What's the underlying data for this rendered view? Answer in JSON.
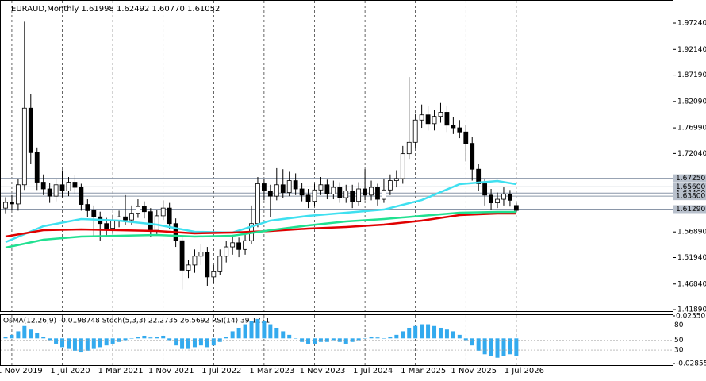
{
  "chart_data": {
    "type": "candlestick",
    "header": "EURAUD,Monthly  1.61998 1.62492 1.60770 1.61052",
    "xlim": [
      -0.88,
      105.8
    ],
    "xticks": [
      {
        "value": 1,
        "label": "1 Nov 2019"
      },
      {
        "value": 9,
        "label": "1 Jul 2020"
      },
      {
        "value": 17,
        "label": "1 Mar 2021"
      },
      {
        "value": 25,
        "label": "1 Nov 2021"
      },
      {
        "value": 33,
        "label": "1 Jul 2022"
      },
      {
        "value": 41,
        "label": "1 Mar 2023"
      },
      {
        "value": 49,
        "label": "1 Nov 2023"
      },
      {
        "value": 57,
        "label": "1 Jul 2024"
      },
      {
        "value": 65,
        "label": "1 Mar 2025"
      },
      {
        "value": 73,
        "label": "1 Nov 2025"
      },
      {
        "value": 81,
        "label": "1 Jul 2026"
      }
    ],
    "ylim": [
      1.4159,
      2.0169
    ],
    "yticks": [
      {
        "value": 1.9724,
        "label": "1.97240"
      },
      {
        "value": 1.9214,
        "label": "1.92140"
      },
      {
        "value": 1.8719,
        "label": "1.87190"
      },
      {
        "value": 1.8209,
        "label": "1.82090"
      },
      {
        "value": 1.7699,
        "label": "1.76990"
      },
      {
        "value": 1.7204,
        "label": "1.72040"
      },
      {
        "value": 1.5689,
        "label": "1.56890"
      },
      {
        "value": 1.5194,
        "label": "1.51940"
      },
      {
        "value": 1.4684,
        "label": "1.46840"
      },
      {
        "value": 1.4189,
        "label": "1.41890"
      }
    ],
    "levels": [
      {
        "value": 1.6725,
        "label": "1.67250"
      },
      {
        "value": 1.656,
        "label": "1.65600"
      },
      {
        "value": 1.644,
        "label": "1.64400"
      },
      {
        "value": 1.638,
        "label": "1.63800"
      },
      {
        "value": 1.6129,
        "label": "1.61290"
      }
    ],
    "up_color": "#ffffff",
    "down_color": "#000000",
    "open": [
      1.615,
      1.626,
      1.623,
      1.66,
      1.808,
      1.722,
      1.665,
      1.652,
      1.638,
      1.66,
      1.648,
      1.665,
      1.655,
      1.622,
      1.61,
      1.598,
      1.585,
      1.576,
      1.59,
      1.598,
      1.592,
      1.605,
      1.618,
      1.608,
      1.572,
      1.6,
      1.615,
      1.585,
      1.552,
      1.495,
      1.505,
      1.522,
      1.53,
      1.482,
      1.492,
      1.522,
      1.54,
      1.548,
      1.535,
      1.552,
      1.585,
      1.662,
      1.648,
      1.638,
      1.66,
      1.645,
      1.668,
      1.652,
      1.64,
      1.628,
      1.65,
      1.66,
      1.642,
      1.655,
      1.635,
      1.648,
      1.628,
      1.652,
      1.64,
      1.655,
      1.632,
      1.65,
      1.668,
      1.672,
      1.72,
      1.742,
      1.785,
      1.795,
      1.778,
      1.792,
      1.8,
      1.775,
      1.77,
      1.762,
      1.74,
      1.69,
      1.662,
      1.64,
      1.625,
      1.632,
      1.642,
      1.61998
    ],
    "high": [
      1.636,
      1.64,
      1.672,
      1.975,
      1.835,
      1.732,
      1.68,
      1.664,
      1.672,
      1.688,
      1.675,
      1.678,
      1.662,
      1.632,
      1.62,
      1.608,
      1.596,
      1.602,
      1.61,
      1.64,
      1.62,
      1.632,
      1.628,
      1.615,
      1.612,
      1.63,
      1.625,
      1.595,
      1.56,
      1.515,
      1.535,
      1.545,
      1.54,
      1.505,
      1.535,
      1.552,
      1.562,
      1.558,
      1.565,
      1.62,
      1.675,
      1.672,
      1.66,
      1.692,
      1.69,
      1.685,
      1.682,
      1.664,
      1.652,
      1.662,
      1.675,
      1.67,
      1.668,
      1.665,
      1.66,
      1.66,
      1.665,
      1.69,
      1.668,
      1.662,
      1.672,
      1.68,
      1.688,
      1.735,
      1.868,
      1.798,
      1.815,
      1.812,
      1.805,
      1.818,
      1.812,
      1.79,
      1.785,
      1.775,
      1.752,
      1.7,
      1.672,
      1.652,
      1.645,
      1.655,
      1.65,
      1.62492
    ],
    "low": [
      1.605,
      1.612,
      1.61,
      1.65,
      1.7,
      1.65,
      1.64,
      1.625,
      1.628,
      1.636,
      1.638,
      1.642,
      1.61,
      1.598,
      1.56,
      1.552,
      1.56,
      1.565,
      1.578,
      1.582,
      1.582,
      1.596,
      1.595,
      1.56,
      1.565,
      1.592,
      1.575,
      1.54,
      1.458,
      1.48,
      1.49,
      1.505,
      1.465,
      1.47,
      1.485,
      1.51,
      1.525,
      1.52,
      1.525,
      1.545,
      1.578,
      1.63,
      1.598,
      1.63,
      1.635,
      1.638,
      1.64,
      1.628,
      1.615,
      1.618,
      1.64,
      1.632,
      1.632,
      1.625,
      1.625,
      1.615,
      1.62,
      1.63,
      1.63,
      1.62,
      1.625,
      1.64,
      1.655,
      1.662,
      1.71,
      1.73,
      1.77,
      1.765,
      1.765,
      1.78,
      1.762,
      1.758,
      1.75,
      1.705,
      1.668,
      1.648,
      1.62,
      1.612,
      1.615,
      1.62,
      1.618,
      1.6077
    ],
    "close": [
      1.626,
      1.623,
      1.66,
      1.808,
      1.722,
      1.665,
      1.652,
      1.638,
      1.66,
      1.648,
      1.665,
      1.655,
      1.622,
      1.61,
      1.598,
      1.585,
      1.576,
      1.59,
      1.598,
      1.592,
      1.605,
      1.618,
      1.608,
      1.572,
      1.6,
      1.615,
      1.585,
      1.552,
      1.495,
      1.505,
      1.522,
      1.53,
      1.482,
      1.492,
      1.522,
      1.54,
      1.548,
      1.535,
      1.552,
      1.585,
      1.662,
      1.648,
      1.638,
      1.66,
      1.645,
      1.668,
      1.652,
      1.64,
      1.628,
      1.65,
      1.66,
      1.642,
      1.655,
      1.635,
      1.648,
      1.628,
      1.652,
      1.64,
      1.655,
      1.632,
      1.65,
      1.668,
      1.672,
      1.72,
      1.742,
      1.785,
      1.795,
      1.778,
      1.792,
      1.8,
      1.775,
      1.77,
      1.762,
      1.74,
      1.69,
      1.662,
      1.64,
      1.625,
      1.632,
      1.642,
      1.63,
      1.6105
    ],
    "ma_x": [
      0,
      6,
      12,
      18,
      24,
      30,
      36,
      42,
      48,
      54,
      60,
      66,
      72,
      78,
      81
    ],
    "series": [
      {
        "color": "#3fe0f0",
        "values": [
          1.5493,
          1.58,
          1.5938,
          1.5907,
          1.583,
          1.5692,
          1.5677,
          1.5907,
          1.5999,
          1.606,
          1.6121,
          1.6305,
          1.6612,
          1.6673,
          1.6612
        ]
      },
      {
        "color": "#e00000",
        "values": [
          1.56,
          1.5723,
          1.5738,
          1.5723,
          1.5708,
          1.5662,
          1.5677,
          1.5708,
          1.5754,
          1.5784,
          1.583,
          1.5907,
          1.6014,
          1.6045,
          1.6045
        ]
      },
      {
        "color": "#20e090",
        "values": [
          1.5386,
          1.5539,
          1.56,
          1.5616,
          1.5631,
          1.56,
          1.5616,
          1.5723,
          1.5815,
          1.5892,
          1.5938,
          1.5999,
          1.606,
          1.6075,
          1.6075
        ]
      }
    ],
    "oscillator": {
      "header": "OsMA(12,26,9) -0.0198748  Stoch(5,3,3) 22.2735 26.5692  RSI(14) 39.1211",
      "color": "#33aaee",
      "ylim": [
        -0.028557,
        0.025502
      ],
      "yticks": [
        {
          "value": 0.025502,
          "label": "0.025502"
        },
        {
          "value": -0.028557,
          "label": "-0.028557"
        }
      ],
      "stoch_levels": [
        80,
        50,
        30
      ],
      "values": [
        0.002,
        0.004,
        0.008,
        0.014,
        0.01,
        0.006,
        0.002,
        -0.002,
        -0.006,
        -0.01,
        -0.012,
        -0.014,
        -0.016,
        -0.014,
        -0.012,
        -0.01,
        -0.008,
        -0.006,
        -0.004,
        -0.002,
        0.0,
        0.002,
        0.003,
        0.001,
        0.002,
        0.003,
        -0.002,
        -0.008,
        -0.012,
        -0.012,
        -0.01,
        -0.008,
        -0.01,
        -0.008,
        -0.004,
        0.002,
        0.008,
        0.012,
        0.016,
        0.02,
        0.022,
        0.02,
        0.016,
        0.012,
        0.008,
        0.004,
        0.0,
        -0.004,
        -0.006,
        -0.006,
        -0.004,
        -0.004,
        -0.002,
        -0.004,
        -0.006,
        -0.004,
        -0.002,
        0.0,
        0.002,
        0.001,
        0.0,
        0.002,
        0.004,
        0.008,
        0.012,
        0.014,
        0.016,
        0.016,
        0.014,
        0.012,
        0.01,
        0.008,
        0.004,
        -0.002,
        -0.008,
        -0.014,
        -0.018,
        -0.02,
        -0.022,
        -0.02,
        -0.018,
        -0.0198748
      ]
    }
  }
}
